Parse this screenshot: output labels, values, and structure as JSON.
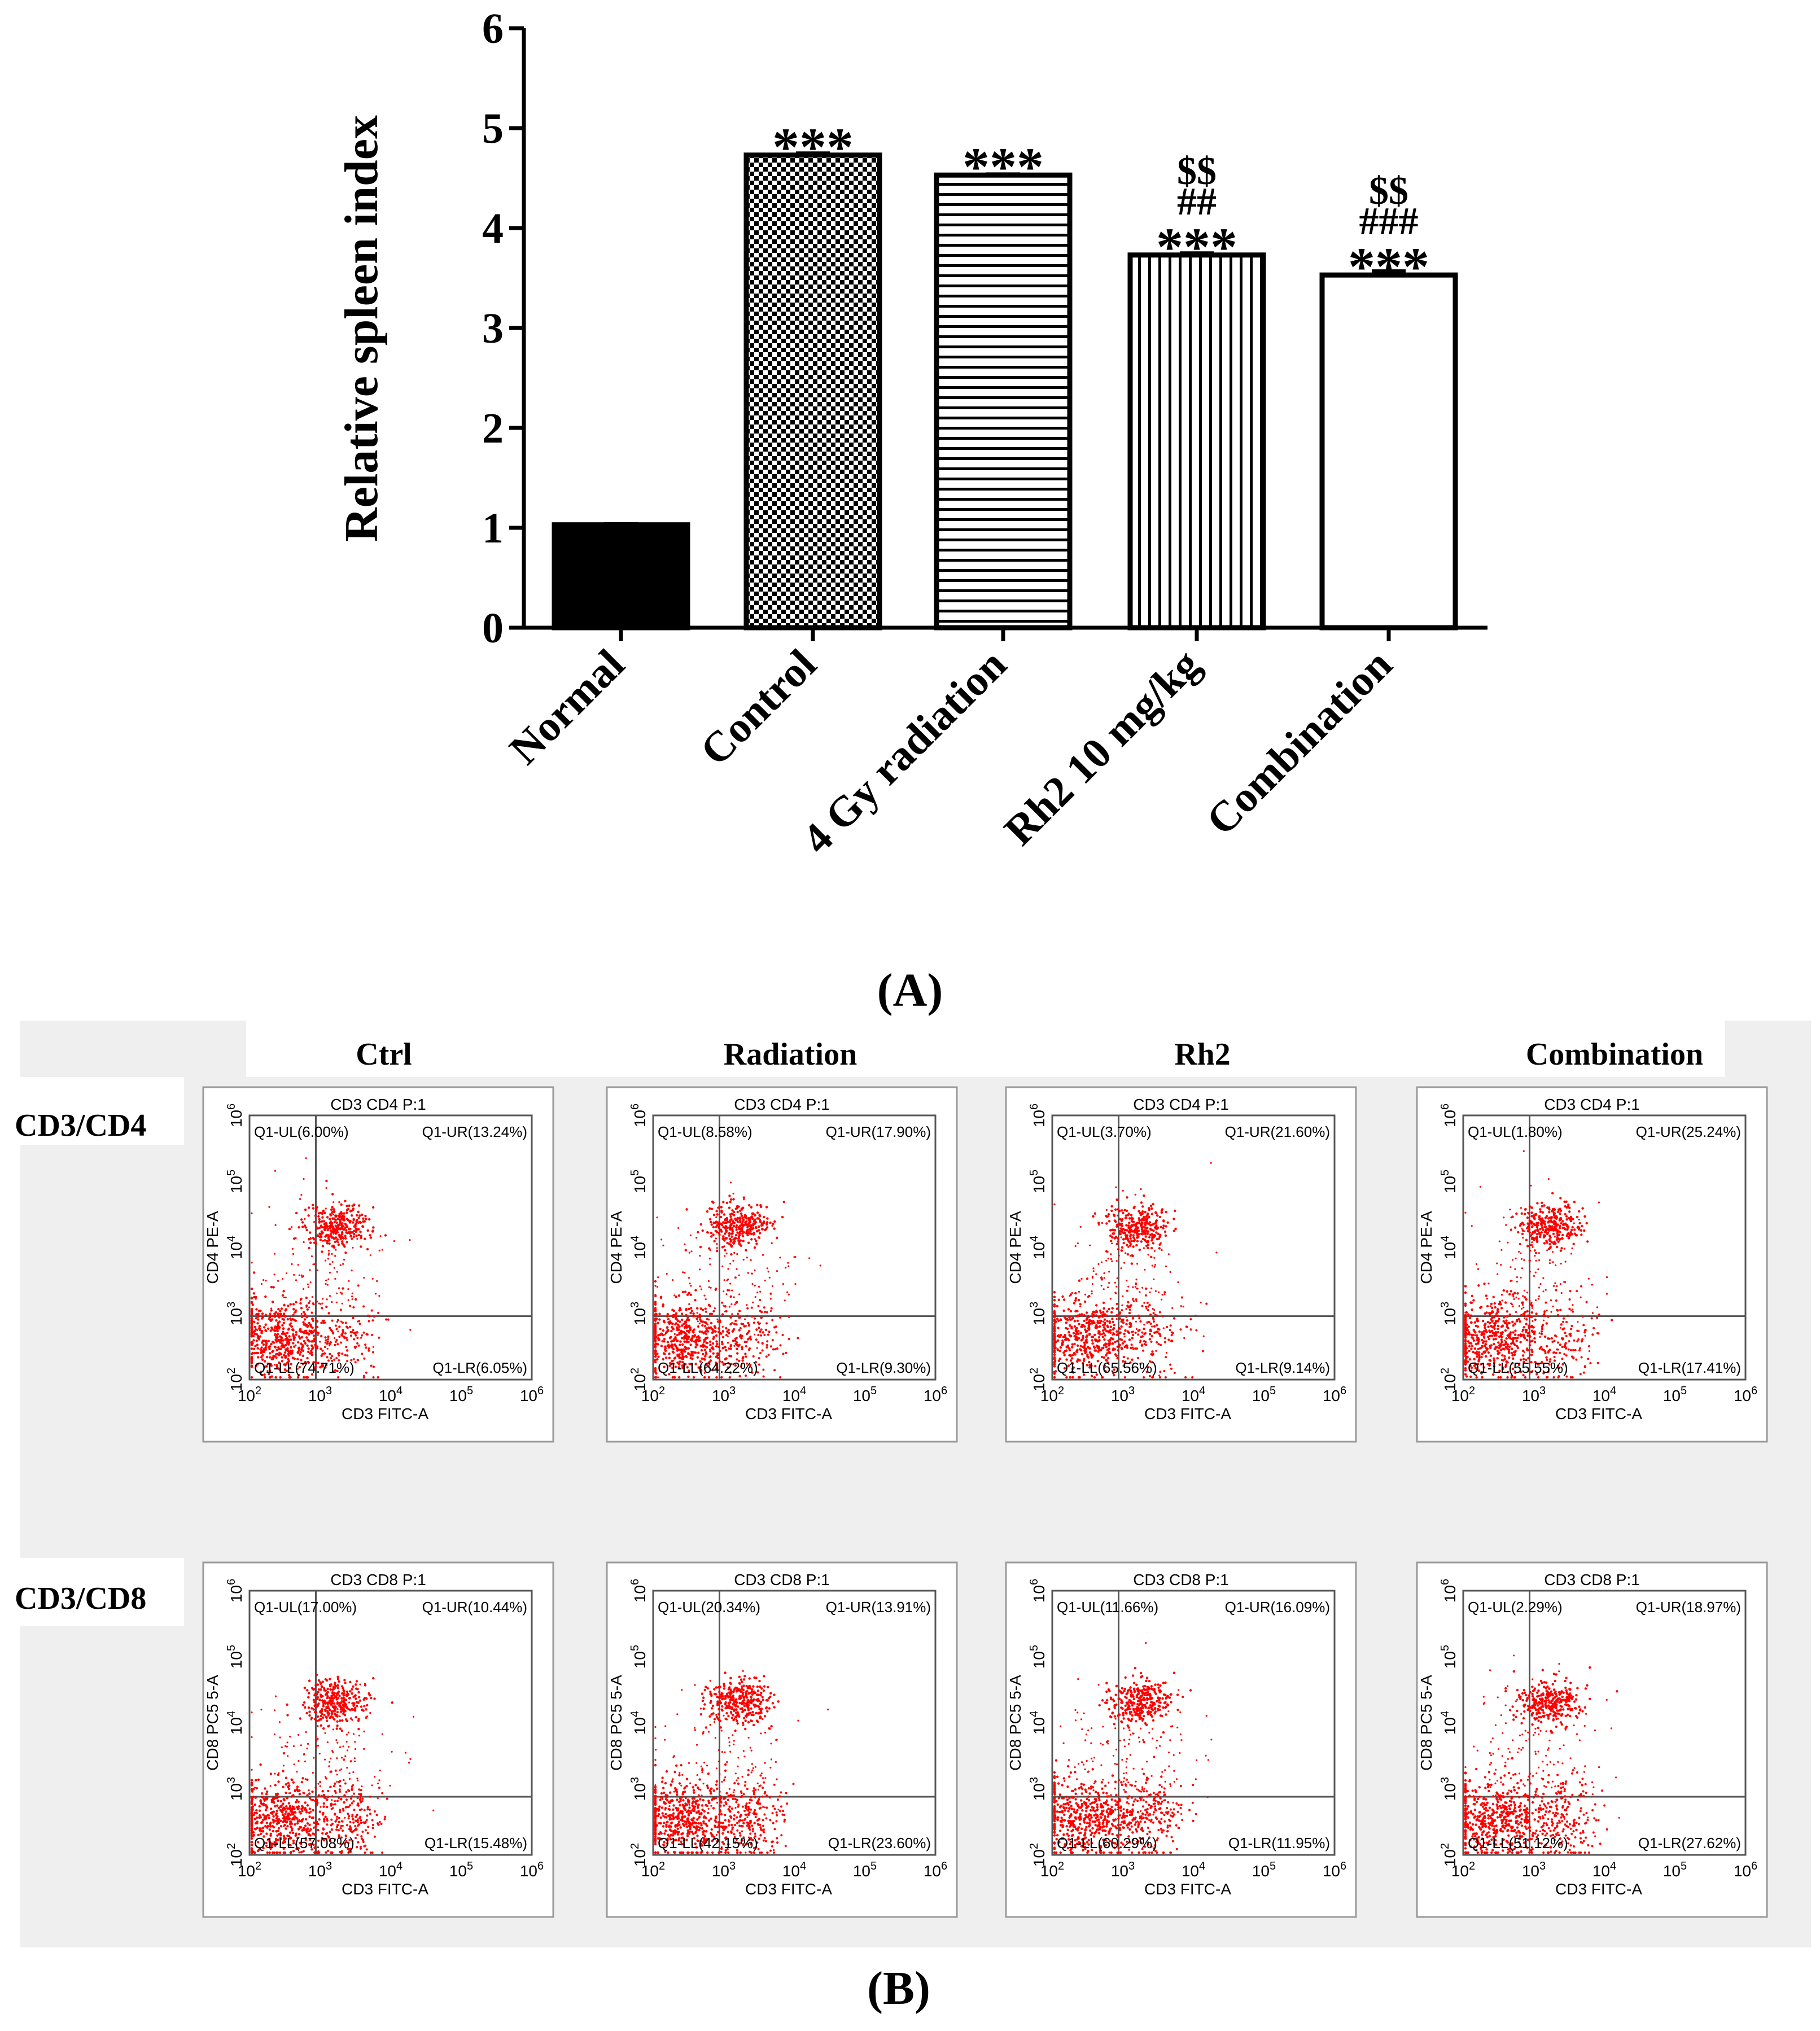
{
  "chart_data": [
    {
      "type": "bar",
      "panel_label": "(A)",
      "panel_letter": "A",
      "ylabel": "Relative spleen index",
      "xlabel": "",
      "ylim": [
        0,
        6
      ],
      "yticks": [
        "0",
        "1",
        "2",
        "3",
        "4",
        "5",
        "6"
      ],
      "categories": [
        "Normal",
        "Control",
        "4 Gy radiation",
        "Rh2 10 mg/kg",
        "Combination"
      ],
      "values": [
        1.03,
        4.73,
        4.53,
        3.73,
        3.53
      ],
      "errors": [
        0.01,
        0.02,
        0.01,
        0.02,
        0.04
      ],
      "fill_patterns": [
        "solid-black",
        "checkerboard",
        "horizontal-lines",
        "vertical-lines",
        "white"
      ],
      "annotations": [
        [],
        [
          "***"
        ],
        [
          "***"
        ],
        [
          "$$",
          "##",
          "***"
        ],
        [
          "$$",
          "###",
          "***"
        ]
      ]
    },
    {
      "type": "scatter",
      "panel_label": "(B)",
      "panel_letter": "B",
      "columns": [
        "Ctrl",
        "Radiation",
        "Rh2",
        "Combination"
      ],
      "rows": [
        {
          "label": "CD3/CD4",
          "plot_title": "CD3 CD4 P:1",
          "ylabel": "CD4 PE-A",
          "xlabel": "CD3 FITC-A",
          "quadrants": [
            {
              "UL": "Q1-UL(6.00%)",
              "UR": "Q1-UR(13.24%)",
              "LL": "Q1-LL(74.71%)",
              "LR": "Q1-LR(6.05%)"
            },
            {
              "UL": "Q1-UL(8.58%)",
              "UR": "Q1-UR(17.90%)",
              "LL": "Q1-LL(64.22%)",
              "LR": "Q1-LR(9.30%)"
            },
            {
              "UL": "Q1-UL(3.70%)",
              "UR": "Q1-UR(21.60%)",
              "LL": "Q1-LL(65.56%)",
              "LR": "Q1-LR(9.14%)"
            },
            {
              "UL": "Q1-UL(1.80%)",
              "UR": "Q1-UR(25.24%)",
              "LL": "Q1-LL(55.55%)",
              "LR": "Q1-LR(17.41%)"
            }
          ]
        },
        {
          "label": "CD3/CD8",
          "plot_title": "CD3 CD8 P:1",
          "ylabel": "CD8 PC5 5-A",
          "xlabel": "CD3 FITC-A",
          "quadrants": [
            {
              "UL": "Q1-UL(17.00%)",
              "UR": "Q1-UR(10.44%)",
              "LL": "Q1-LL(57.08%)",
              "LR": "Q1-LR(15.48%)"
            },
            {
              "UL": "Q1-UL(20.34%)",
              "UR": "Q1-UR(13.91%)",
              "LL": "Q1-LL(42.15%)",
              "LR": "Q1-LR(23.60%)"
            },
            {
              "UL": "Q1-UL(11.66%)",
              "UR": "Q1-UR(16.09%)",
              "LL": "Q1-LL(60.29%)",
              "LR": "Q1-LR(11.95%)"
            },
            {
              "UL": "Q1-UL(2.29%)",
              "UR": "Q1-UR(18.97%)",
              "LL": "Q1-LL(51.12%)",
              "LR": "Q1-LR(27.62%)"
            }
          ]
        }
      ],
      "axis_ticks": [
        "2",
        "3",
        "4",
        "5",
        "6"
      ],
      "axis_tick_base": "10",
      "point_color": "#ff0000"
    }
  ]
}
